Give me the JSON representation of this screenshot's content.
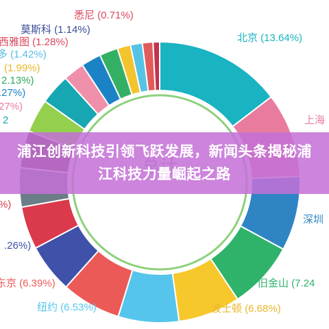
{
  "chart_data": {
    "type": "pie",
    "variant": "donut",
    "center_label": "总计",
    "label_format": "{name} ({pct}%)",
    "slices": [
      {
        "name": "北京",
        "value": 13.64,
        "color": "#1ab3c2"
      },
      {
        "name": "上海",
        "value": 9.1,
        "color": "#e97c9e"
      },
      {
        "name": "深圳",
        "value": 8.0,
        "color": "#2f84c4"
      },
      {
        "name": "旧金山",
        "value": 7.24,
        "color": "#2fb36a"
      },
      {
        "name": "波士顿",
        "value": 6.68,
        "color": "#f7c82c"
      },
      {
        "name": "纽约",
        "value": 6.53,
        "color": "#55c5ec"
      },
      {
        "name": "东京",
        "value": 6.39,
        "color": "#eb5a57"
      },
      {
        "name": "",
        "value": 5.26,
        "color": "#3f51a8"
      },
      {
        "name": "",
        "value": 4.6,
        "color": "#da3a4c"
      },
      {
        "name": "",
        "value": 4.2,
        "color": "#6b7d86"
      },
      {
        "name": "",
        "value": 4.0,
        "color": "#5b3a33"
      },
      {
        "name": "",
        "value": 3.6,
        "color": "#95cf4e"
      },
      {
        "name": "",
        "value": 3.27,
        "color": "#17a7b2"
      },
      {
        "name": "",
        "value": 2.27,
        "color": "#f08fa9"
      },
      {
        "name": "",
        "value": 2.13,
        "color": "#1b83c5"
      },
      {
        "name": "",
        "value": 1.99,
        "color": "#34b065"
      },
      {
        "name": "",
        "value": 1.42,
        "color": "#f4c42f"
      },
      {
        "name": "西雅图",
        "value": 1.28,
        "color": "#56c3e6"
      },
      {
        "name": "莫斯科",
        "value": 1.14,
        "color": "#e25b5b"
      },
      {
        "name": "悉尼",
        "value": 0.71,
        "color": "#c2334d"
      }
    ],
    "visible_labels": [
      {
        "text": "悉尼 (0.71%)",
        "color": "#d9475b"
      },
      {
        "text": "莫斯科 (1.14%)",
        "color": "#3a4d9a"
      },
      {
        "text": "西雅图 (1.28%)",
        "color": "#d9475b"
      },
      {
        "text": "多 (1.42%)",
        "color": "#56bde4"
      },
      {
        "text": "(1.99%)",
        "color": "#e8b62a"
      },
      {
        "text": "2.13%)",
        "color": "#2fa85e"
      },
      {
        "text": ".27%)",
        "color": "#1b83c5"
      },
      {
        "text": "27%)",
        "color": "#e97c9e"
      },
      {
        "text": "2",
        "color": "#17a7b2"
      },
      {
        "text": "%)",
        "color": "#da3a4c"
      },
      {
        "text": ".26%)",
        "color": "#3f51a8"
      },
      {
        "text": "东京 (6.39%)",
        "color": "#eb5a57"
      },
      {
        "text": "纽约 (6.53%)",
        "color": "#55c5ec"
      },
      {
        "text": "波士顿 (6.68%)",
        "color": "#e8b62a"
      },
      {
        "text": "旧金山 (7.24",
        "color": "#2fb36a"
      },
      {
        "text": "深圳",
        "color": "#2f84c4"
      },
      {
        "text": "上海",
        "color": "#e97c9e"
      },
      {
        "text": "北京 (13.64%)",
        "color": "#1ab3c2"
      }
    ]
  },
  "banner": {
    "title": "浦江创新科技引领飞跃发展，新闻头条揭秘浦江科技力量崛起之路"
  }
}
